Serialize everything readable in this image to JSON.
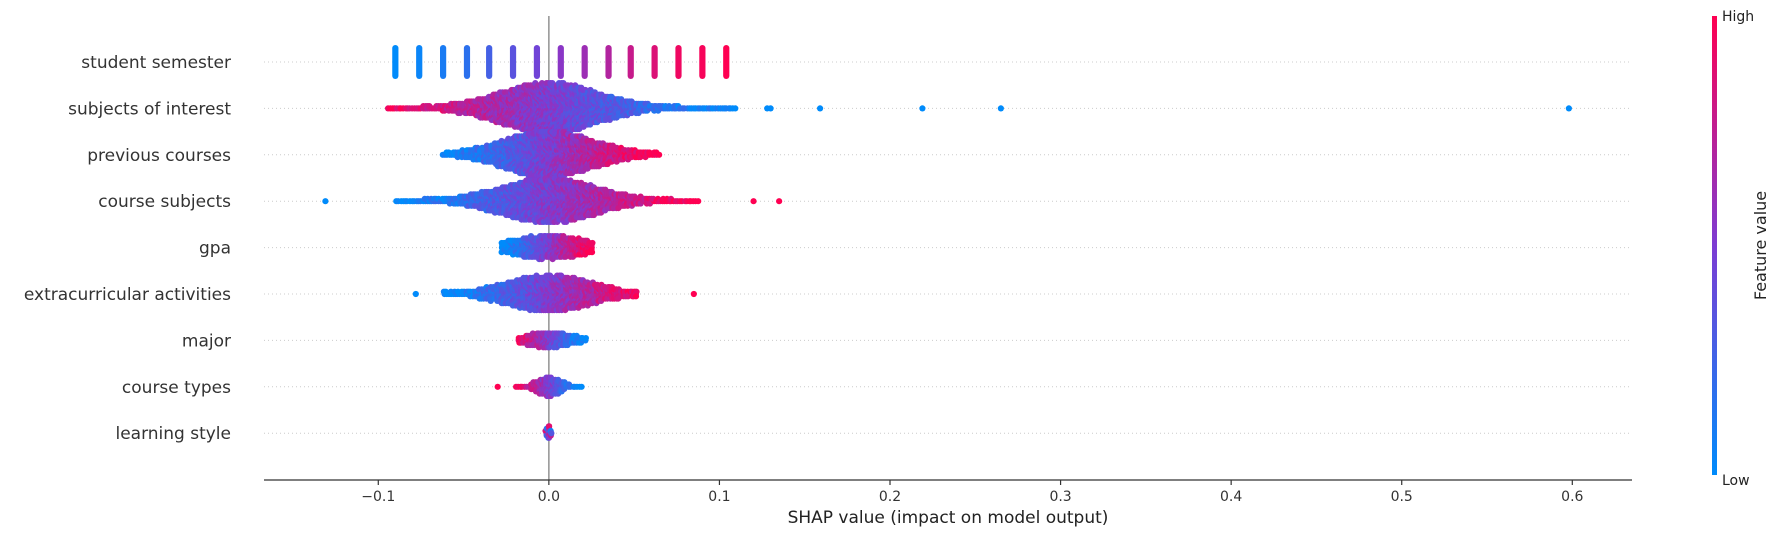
{
  "chart_data": {
    "type": "scatter",
    "subtype": "shap-beeswarm",
    "xlabel": "SHAP value (impact on model output)",
    "xlim": [
      -0.167,
      0.635
    ],
    "xticks": [
      -0.1,
      0.0,
      0.1,
      0.2,
      0.3,
      0.4,
      0.5,
      0.6
    ],
    "xtick_labels": [
      "−0.1",
      "0.0",
      "0.1",
      "0.2",
      "0.3",
      "0.4",
      "0.5",
      "0.6"
    ],
    "grid": false,
    "colorbar": {
      "title": "Feature value",
      "high_label": "High",
      "low_label": "Low",
      "high_color": "#ff0052",
      "mid_color": "#7d3cd3",
      "low_color": "#008bfb"
    },
    "features": [
      {
        "name": "student semester",
        "mode": "discrete",
        "columns": [
          {
            "x": -0.09,
            "value": 0.0
          },
          {
            "x": -0.076,
            "value": 0.04
          },
          {
            "x": -0.062,
            "value": 0.1
          },
          {
            "x": -0.048,
            "value": 0.17
          },
          {
            "x": -0.035,
            "value": 0.27
          },
          {
            "x": -0.021,
            "value": 0.36
          },
          {
            "x": -0.007,
            "value": 0.45
          },
          {
            "x": 0.007,
            "value": 0.55
          },
          {
            "x": 0.021,
            "value": 0.62
          },
          {
            "x": 0.035,
            "value": 0.7
          },
          {
            "x": 0.048,
            "value": 0.78
          },
          {
            "x": 0.062,
            "value": 0.86
          },
          {
            "x": 0.076,
            "value": 0.94
          },
          {
            "x": 0.09,
            "value": 0.97
          },
          {
            "x": 0.104,
            "value": 1.0
          }
        ]
      },
      {
        "name": "subjects of interest",
        "mode": "cloud",
        "range": [
          -0.095,
          0.11
        ],
        "center": 0.0,
        "spread": 0.028,
        "density": 2.4,
        "direction": "neg",
        "outliers": [
          {
            "x": 0.128,
            "value": 0.0
          },
          {
            "x": 0.13,
            "value": 0.0
          },
          {
            "x": 0.159,
            "value": 0.0
          },
          {
            "x": 0.219,
            "value": 0.0
          },
          {
            "x": 0.265,
            "value": 0.0
          },
          {
            "x": 0.598,
            "value": 0.0
          }
        ]
      },
      {
        "name": "previous courses",
        "mode": "cloud",
        "range": [
          -0.063,
          0.065
        ],
        "center": 0.0,
        "spread": 0.025,
        "density": 2.2,
        "direction": "pos",
        "outliers": []
      },
      {
        "name": "course subjects",
        "mode": "cloud",
        "range": [
          -0.09,
          0.088
        ],
        "center": 0.0,
        "spread": 0.027,
        "density": 2.1,
        "direction": "pos",
        "outliers": [
          {
            "x": -0.131,
            "value": 0.0
          },
          {
            "x": 0.12,
            "value": 1.0
          },
          {
            "x": 0.135,
            "value": 1.0
          }
        ]
      },
      {
        "name": "gpa",
        "mode": "cloud",
        "range": [
          -0.028,
          0.026
        ],
        "center": 0.0,
        "spread": 0.02,
        "density": 1.1,
        "direction": "pos",
        "outliers": []
      },
      {
        "name": "extracurricular activities",
        "mode": "cloud",
        "range": [
          -0.062,
          0.052
        ],
        "center": 0.0,
        "spread": 0.024,
        "density": 1.7,
        "direction": "pos",
        "outliers": [
          {
            "x": -0.078,
            "value": 0.0
          },
          {
            "x": 0.085,
            "value": 1.0
          }
        ]
      },
      {
        "name": "major",
        "mode": "cloud",
        "range": [
          -0.018,
          0.022
        ],
        "center": 0.0,
        "spread": 0.012,
        "density": 0.7,
        "direction": "neg",
        "outliers": []
      },
      {
        "name": "course types",
        "mode": "cloud",
        "range": [
          -0.02,
          0.02
        ],
        "center": 0.0,
        "spread": 0.006,
        "density": 0.9,
        "direction": "neg",
        "outliers": [
          {
            "x": -0.03,
            "value": 1.0
          }
        ]
      },
      {
        "name": "learning style",
        "mode": "cloud",
        "range": [
          -0.002,
          0.002
        ],
        "center": 0.0,
        "spread": 0.001,
        "density": 0.6,
        "direction": "mixed",
        "outliers": []
      }
    ]
  }
}
